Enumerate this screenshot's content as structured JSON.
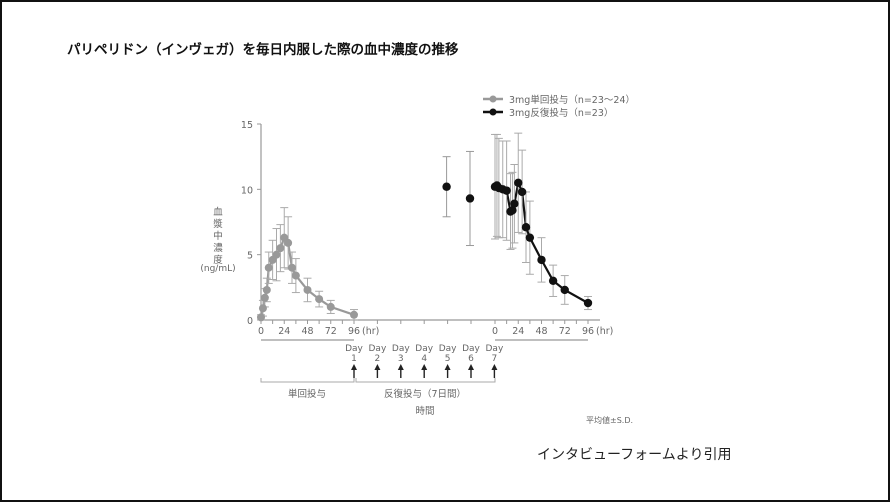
{
  "title": "パリペリドン（インヴェガ）を毎日内服した際の血中濃度の推移",
  "source_note": "インタビューフォームより引用",
  "footnote": "平均値±S.D.",
  "chart_data": {
    "type": "line",
    "title": "パリペリドン（インヴェガ）を毎日内服した際の血中濃度の推移",
    "ylabel": "血漿中濃度 (ng/mL)",
    "ylabel_chars": [
      "血",
      "漿",
      "中",
      "濃",
      "度"
    ],
    "ylabel_unit": "(ng/mL)",
    "xlabel": "時間",
    "ylim": [
      0,
      15
    ],
    "yticks": [
      "0",
      "5",
      "10",
      "15"
    ],
    "xticks_panel": [
      "0",
      "24",
      "48",
      "72",
      "96"
    ],
    "x_unit": "(hr)",
    "grid": false,
    "legend_position": "top-right",
    "legend": [
      {
        "label": "3mg単回投与（n=23〜24）",
        "color": "#999999"
      },
      {
        "label": "3mg反復投与（n=23）",
        "color": "#111111"
      }
    ],
    "days": [
      {
        "label": "Day",
        "num": "1"
      },
      {
        "label": "Day",
        "num": "2"
      },
      {
        "label": "Day",
        "num": "3"
      },
      {
        "label": "Day",
        "num": "4"
      },
      {
        "label": "Day",
        "num": "5"
      },
      {
        "label": "Day",
        "num": "6"
      },
      {
        "label": "Day",
        "num": "7"
      }
    ],
    "brackets": [
      {
        "label": "単回投与"
      },
      {
        "label": "反復投与（7日間）"
      }
    ],
    "series": [
      {
        "name": "3mg単回投与（n=23〜24）",
        "color": "#999999",
        "x_hr": [
          0,
          2,
          4,
          6,
          8,
          12,
          16,
          20,
          24,
          28,
          32,
          36,
          48,
          60,
          72,
          96
        ],
        "values": [
          0.2,
          0.9,
          1.7,
          2.3,
          4.0,
          4.6,
          5.0,
          5.5,
          6.3,
          5.9,
          4.0,
          3.4,
          2.3,
          1.6,
          1.0,
          0.4
        ],
        "sd": [
          0.2,
          0.6,
          0.7,
          0.9,
          1.2,
          1.5,
          2.0,
          1.8,
          2.3,
          2.0,
          1.2,
          1.3,
          0.9,
          0.6,
          0.5,
          0.4
        ]
      },
      {
        "name": "3mg反復投与（n=23） trough",
        "color": "#111111",
        "x_day": [
          5,
          6
        ],
        "values": [
          10.2,
          9.3
        ],
        "sd": [
          2.3,
          3.6
        ]
      },
      {
        "name": "3mg反復投与（n=23）",
        "color": "#111111",
        "x_hr": [
          0,
          2,
          4,
          8,
          12,
          16,
          18,
          20,
          24,
          28,
          32,
          36,
          48,
          60,
          72,
          96
        ],
        "values": [
          10.2,
          10.3,
          10.1,
          10.0,
          9.9,
          8.3,
          8.4,
          8.9,
          10.5,
          9.8,
          7.1,
          6.3,
          4.6,
          3.0,
          2.3,
          1.3
        ],
        "sd": [
          4.0,
          3.9,
          3.8,
          3.7,
          3.8,
          2.9,
          2.9,
          3.0,
          3.8,
          3.2,
          2.7,
          2.8,
          1.7,
          1.2,
          1.1,
          0.5
        ]
      }
    ]
  }
}
